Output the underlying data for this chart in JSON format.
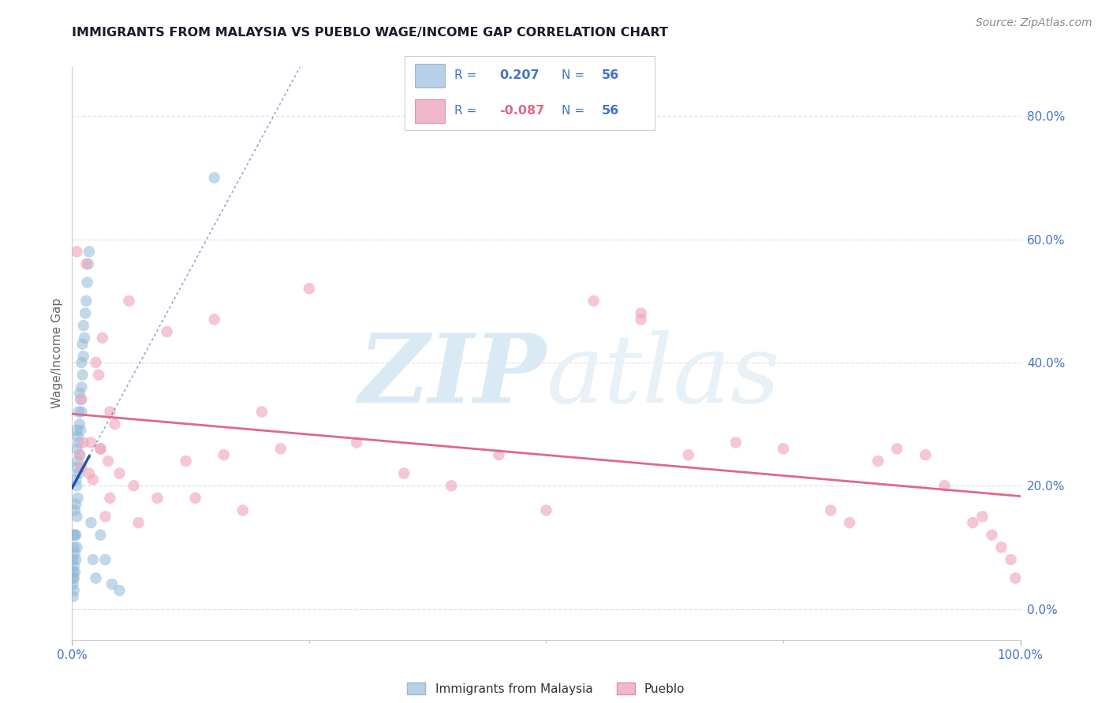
{
  "title": "IMMIGRANTS FROM MALAYSIA VS PUEBLO WAGE/INCOME GAP CORRELATION CHART",
  "source": "Source: ZipAtlas.com",
  "ylabel": "Wage/Income Gap",
  "ytick_values": [
    0.0,
    0.2,
    0.4,
    0.6,
    0.8
  ],
  "xlim": [
    0.0,
    1.0
  ],
  "ylim": [
    -0.05,
    0.88
  ],
  "R_blue": 0.207,
  "N_blue": 56,
  "R_pink": -0.087,
  "N_pink": 56,
  "blue_scatter_x": [
    0.001,
    0.001,
    0.001,
    0.001,
    0.001,
    0.002,
    0.002,
    0.002,
    0.002,
    0.002,
    0.003,
    0.003,
    0.003,
    0.003,
    0.004,
    0.004,
    0.004,
    0.004,
    0.005,
    0.005,
    0.005,
    0.005,
    0.005,
    0.005,
    0.006,
    0.006,
    0.006,
    0.007,
    0.007,
    0.007,
    0.008,
    0.008,
    0.008,
    0.009,
    0.009,
    0.01,
    0.01,
    0.01,
    0.011,
    0.011,
    0.012,
    0.012,
    0.013,
    0.014,
    0.015,
    0.016,
    0.017,
    0.018,
    0.02,
    0.022,
    0.025,
    0.03,
    0.035,
    0.042,
    0.05,
    0.15
  ],
  "blue_scatter_y": [
    0.02,
    0.04,
    0.05,
    0.06,
    0.08,
    0.03,
    0.05,
    0.07,
    0.1,
    0.12,
    0.06,
    0.09,
    0.12,
    0.16,
    0.08,
    0.12,
    0.17,
    0.21,
    0.1,
    0.15,
    0.2,
    0.23,
    0.26,
    0.29,
    0.18,
    0.24,
    0.28,
    0.22,
    0.27,
    0.32,
    0.25,
    0.3,
    0.35,
    0.29,
    0.34,
    0.32,
    0.36,
    0.4,
    0.38,
    0.43,
    0.41,
    0.46,
    0.44,
    0.48,
    0.5,
    0.53,
    0.56,
    0.58,
    0.14,
    0.08,
    0.05,
    0.12,
    0.08,
    0.04,
    0.03,
    0.7
  ],
  "pink_scatter_x": [
    0.005,
    0.008,
    0.01,
    0.012,
    0.015,
    0.018,
    0.022,
    0.025,
    0.028,
    0.03,
    0.032,
    0.035,
    0.038,
    0.04,
    0.045,
    0.05,
    0.06,
    0.065,
    0.07,
    0.09,
    0.1,
    0.12,
    0.13,
    0.15,
    0.16,
    0.18,
    0.2,
    0.22,
    0.25,
    0.3,
    0.35,
    0.4,
    0.45,
    0.5,
    0.55,
    0.6,
    0.6,
    0.65,
    0.7,
    0.75,
    0.8,
    0.82,
    0.85,
    0.87,
    0.9,
    0.92,
    0.95,
    0.96,
    0.97,
    0.98,
    0.99,
    0.995,
    0.01,
    0.02,
    0.03,
    0.04
  ],
  "pink_scatter_y": [
    0.58,
    0.25,
    0.23,
    0.27,
    0.56,
    0.22,
    0.21,
    0.4,
    0.38,
    0.26,
    0.44,
    0.15,
    0.24,
    0.32,
    0.3,
    0.22,
    0.5,
    0.2,
    0.14,
    0.18,
    0.45,
    0.24,
    0.18,
    0.47,
    0.25,
    0.16,
    0.32,
    0.26,
    0.52,
    0.27,
    0.22,
    0.2,
    0.25,
    0.16,
    0.5,
    0.48,
    0.47,
    0.25,
    0.27,
    0.26,
    0.16,
    0.14,
    0.24,
    0.26,
    0.25,
    0.2,
    0.14,
    0.15,
    0.12,
    0.1,
    0.08,
    0.05,
    0.34,
    0.27,
    0.26,
    0.18
  ],
  "bg_color": "#ffffff",
  "blue_dot_color": "#90b8d8",
  "blue_trend_solid_color": "#2255aa",
  "pink_dot_color": "#f0a8be",
  "pink_trend_color": "#e06888",
  "watermark_color": "#daeaf5",
  "title_color": "#1a1a2e",
  "axis_color": "#4472c4",
  "grid_color": "#dde0ee",
  "source_color": "#888888",
  "legend_text_blue": "#4472c4",
  "legend_text_pink": "#4472c4",
  "legend_bg": "#ffffff",
  "legend_border": "#cccccc"
}
